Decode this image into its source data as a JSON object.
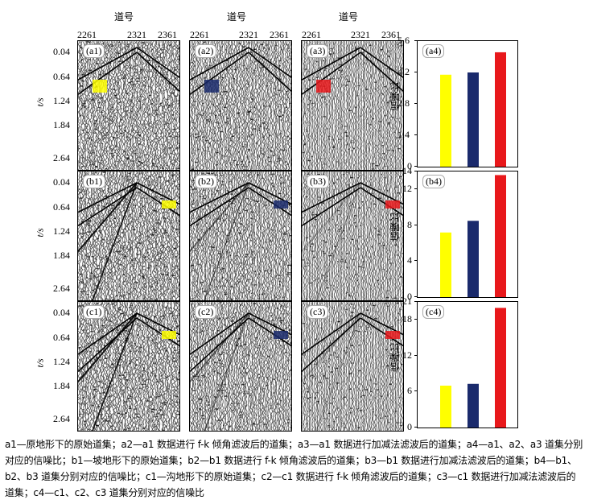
{
  "column_header": "道号",
  "x_ticks": [
    "2261",
    "2321",
    "2361"
  ],
  "time_axis_label": "t/s",
  "time_ticks": [
    "0.04",
    "0.64",
    "1.24",
    "1.84",
    "2.64"
  ],
  "snr_label": "信噪比",
  "colors": {
    "yellow": "#ffff00",
    "navy": "#1a2a6c",
    "red": "#e8181b"
  },
  "rows": [
    {
      "id": "a",
      "labels": [
        "(a1)",
        "(a2)",
        "(a3)"
      ],
      "chart_label": "(a4)"
    },
    {
      "id": "b",
      "labels": [
        "(b1)",
        "(b2)",
        "(b3)"
      ],
      "chart_label": "(b4)"
    },
    {
      "id": "c",
      "labels": [
        "(c1)",
        "(c2)",
        "(c3)"
      ],
      "chart_label": "(c4)"
    }
  ],
  "chart_data": [
    {
      "type": "bar",
      "title": "(a4)",
      "ylabel": "信噪比",
      "ylim": [
        0,
        5.6
      ],
      "yticks": [
        "0",
        "1.4",
        "2.8",
        "4.2",
        "5.6"
      ],
      "values": [
        4.1,
        4.2,
        5.1
      ],
      "colors": [
        "#ffff00",
        "#1a2a6c",
        "#e8181b"
      ]
    },
    {
      "type": "bar",
      "title": "(b4)",
      "ylabel": "信噪比",
      "ylim": [
        0,
        14
      ],
      "yticks": [
        "0",
        "4",
        "8",
        "12",
        "14"
      ],
      "values": [
        7.2,
        8.5,
        13.6
      ],
      "colors": [
        "#ffff00",
        "#1a2a6c",
        "#e8181b"
      ]
    },
    {
      "type": "bar",
      "title": "(c4)",
      "ylabel": "信噪比",
      "ylim": [
        0,
        21
      ],
      "yticks": [
        "0",
        "6",
        "12",
        "18",
        "21"
      ],
      "values": [
        7.0,
        7.3,
        20.0
      ],
      "colors": [
        "#ffff00",
        "#1a2a6c",
        "#e8181b"
      ]
    }
  ],
  "caption": "a1—原地形下的原始道集；a2—a1 数据进行 f-k 倾角滤波后的道集；a3—a1 数据进行加减法滤波后的道集；a4—a1、a2、a3 道集分别对应的信噪比；b1—坡地形下的原始道集；b2—b1 数据进行 f-k 倾角滤波后的道集；b3—b1 数据进行加减法滤波后的道集；b4—b1、b2、b3 道集分别对应的信噪比；c1—沟地形下的原始道集；c2—c1 数据进行 f-k 倾角滤波后的道集；c3—c1 数据进行加减法滤波后的道集；c4—c1、c2、c3 道集分别对应的信噪比"
}
